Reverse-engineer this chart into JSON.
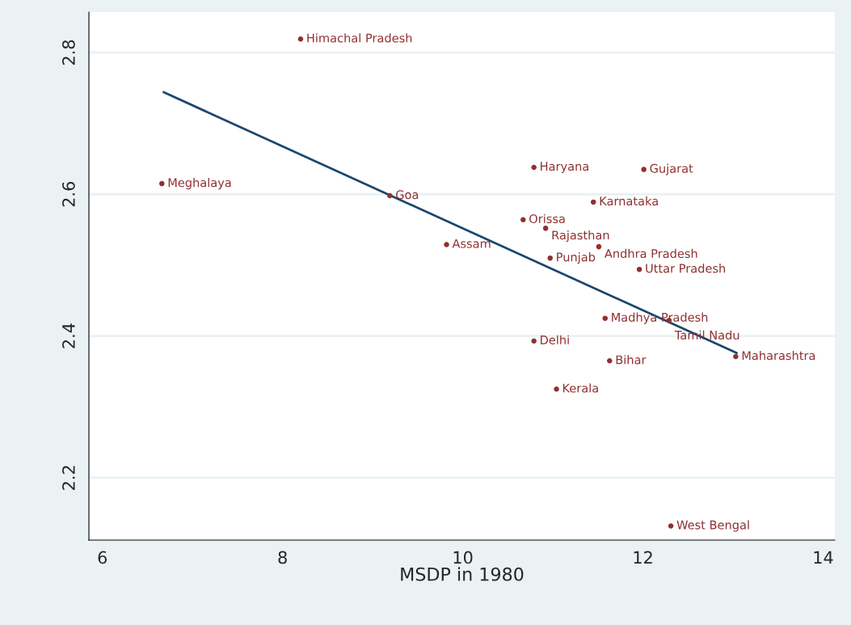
{
  "chart_data": {
    "type": "scatter",
    "xlabel": "MSDP in 1980",
    "xlim": [
      5.85,
      14.13
    ],
    "ylim": [
      2.112,
      2.857
    ],
    "xticks": [
      6,
      8,
      10,
      12,
      14
    ],
    "yticks": [
      2.2,
      2.4,
      2.6,
      2.8
    ],
    "grid": "y",
    "x": [
      8.2,
      6.66,
      9.19,
      10.79,
      12.01,
      11.45,
      10.67,
      10.92,
      9.82,
      11.51,
      10.97,
      11.96,
      11.58,
      12.29,
      10.79,
      13.03,
      11.63,
      11.04,
      12.31
    ],
    "series": [
      {
        "marker": "circle",
        "color": "#903030",
        "values": [
          2.819,
          2.615,
          2.598,
          2.638,
          2.635,
          2.589,
          2.564,
          2.552,
          2.529,
          2.526,
          2.51,
          2.494,
          2.425,
          2.422,
          2.393,
          2.371,
          2.365,
          2.325,
          2.132
        ]
      },
      {
        "type": "line",
        "marker": "none",
        "color": "#1a476f",
        "x": [
          6.68,
          13.04
        ],
        "values": [
          2.744,
          2.376
        ]
      }
    ],
    "annotations": [
      {
        "text": "Himachal Pradesh",
        "x": 8.2,
        "y": 2.819
      },
      {
        "text": "Meghalaya",
        "x": 6.66,
        "y": 2.615
      },
      {
        "text": "Goa",
        "x": 9.19,
        "y": 2.598
      },
      {
        "text": "Haryana",
        "x": 10.79,
        "y": 2.638
      },
      {
        "text": "Gujarat",
        "x": 12.01,
        "y": 2.635
      },
      {
        "text": "Karnataka",
        "x": 11.45,
        "y": 2.589
      },
      {
        "text": "Orissa",
        "x": 10.67,
        "y": 2.564
      },
      {
        "text": "Rajasthan",
        "x": 10.92,
        "y": 2.552
      },
      {
        "text": "Assam",
        "x": 9.82,
        "y": 2.529
      },
      {
        "text": "Andhra Pradesh",
        "x": 11.51,
        "y": 2.526
      },
      {
        "text": "Punjab",
        "x": 10.97,
        "y": 2.51
      },
      {
        "text": "Uttar Pradesh",
        "x": 11.96,
        "y": 2.494
      },
      {
        "text": "Madhya Pradesh",
        "x": 11.58,
        "y": 2.425
      },
      {
        "text": "Tamil Nadu",
        "x": 12.29,
        "y": 2.422
      },
      {
        "text": "Delhi",
        "x": 10.79,
        "y": 2.393
      },
      {
        "text": "Maharashtra",
        "x": 13.03,
        "y": 2.371
      },
      {
        "text": "Bihar",
        "x": 11.63,
        "y": 2.365
      },
      {
        "text": "Kerala",
        "x": 11.04,
        "y": 2.325
      },
      {
        "text": "West Bengal",
        "x": 12.31,
        "y": 2.132
      }
    ]
  }
}
